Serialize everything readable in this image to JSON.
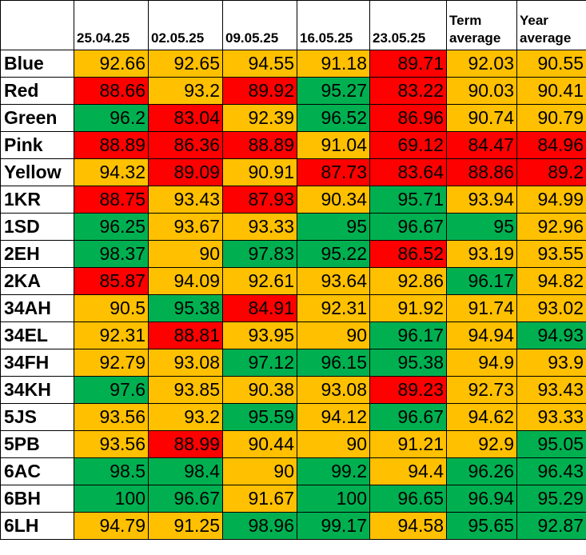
{
  "columns": [
    {
      "label": "25.04.25"
    },
    {
      "label": "02.05.25"
    },
    {
      "label": "09.05.25"
    },
    {
      "label": "16.05.25"
    },
    {
      "label": "23.05.25"
    },
    {
      "label": "Term average"
    },
    {
      "label": "Year average"
    }
  ],
  "legend_colors": {
    "green": "#00b050",
    "amber": "#ffc000",
    "red": "#ff0000"
  },
  "rows": [
    {
      "label": "Blue",
      "values": [
        "92.66",
        "92.65",
        "94.55",
        "91.18",
        "89.71",
        "92.03",
        "90.55"
      ],
      "colors": [
        "a",
        "a",
        "a",
        "a",
        "r",
        "a",
        "a"
      ]
    },
    {
      "label": "Red",
      "values": [
        "88.66",
        "93.2",
        "89.92",
        "95.27",
        "83.22",
        "90.03",
        "90.41"
      ],
      "colors": [
        "r",
        "a",
        "r",
        "g",
        "r",
        "a",
        "a"
      ]
    },
    {
      "label": "Green",
      "values": [
        "96.2",
        "83.04",
        "92.39",
        "96.52",
        "86.96",
        "90.74",
        "90.79"
      ],
      "colors": [
        "g",
        "r",
        "a",
        "g",
        "r",
        "a",
        "a"
      ]
    },
    {
      "label": "Pink",
      "values": [
        "88.89",
        "86.36",
        "88.89",
        "91.04",
        "69.12",
        "84.47",
        "84.96"
      ],
      "colors": [
        "r",
        "r",
        "r",
        "a",
        "r",
        "r",
        "r"
      ]
    },
    {
      "label": "Yellow",
      "values": [
        "94.32",
        "89.09",
        "90.91",
        "87.73",
        "83.64",
        "88.86",
        "89.2"
      ],
      "colors": [
        "a",
        "r",
        "a",
        "r",
        "r",
        "r",
        "r"
      ]
    },
    {
      "label": "1KR",
      "values": [
        "88.75",
        "93.43",
        "87.93",
        "90.34",
        "95.71",
        "93.94",
        "94.99"
      ],
      "colors": [
        "r",
        "a",
        "r",
        "a",
        "g",
        "a",
        "a"
      ]
    },
    {
      "label": "1SD",
      "values": [
        "96.25",
        "93.67",
        "93.33",
        "95",
        "96.67",
        "95",
        "92.96"
      ],
      "colors": [
        "g",
        "a",
        "a",
        "g",
        "g",
        "g",
        "a"
      ]
    },
    {
      "label": "2EH",
      "values": [
        "98.37",
        "90",
        "97.83",
        "95.22",
        "86.52",
        "93.19",
        "93.55"
      ],
      "colors": [
        "g",
        "a",
        "g",
        "g",
        "r",
        "a",
        "a"
      ]
    },
    {
      "label": "2KA",
      "values": [
        "85.87",
        "94.09",
        "92.61",
        "93.64",
        "92.86",
        "96.17",
        "94.82"
      ],
      "colors": [
        "r",
        "a",
        "a",
        "a",
        "a",
        "g",
        "a"
      ]
    },
    {
      "label": "34AH",
      "values": [
        "90.5",
        "95.38",
        "84.91",
        "92.31",
        "91.92",
        "91.74",
        "93.02"
      ],
      "colors": [
        "a",
        "g",
        "r",
        "a",
        "a",
        "a",
        "a"
      ]
    },
    {
      "label": "34EL",
      "values": [
        "92.31",
        "88.81",
        "93.95",
        "90",
        "96.17",
        "94.94",
        "94.93"
      ],
      "colors": [
        "a",
        "r",
        "a",
        "a",
        "g",
        "a",
        "g"
      ]
    },
    {
      "label": "34FH",
      "values": [
        "92.79",
        "93.08",
        "97.12",
        "96.15",
        "95.38",
        "94.9",
        "93.9"
      ],
      "colors": [
        "a",
        "a",
        "g",
        "g",
        "g",
        "a",
        "a"
      ]
    },
    {
      "label": "34KH",
      "values": [
        "97.6",
        "93.85",
        "90.38",
        "93.08",
        "89.23",
        "92.73",
        "93.43"
      ],
      "colors": [
        "g",
        "a",
        "a",
        "a",
        "r",
        "a",
        "a"
      ]
    },
    {
      "label": "5JS",
      "values": [
        "93.56",
        "93.2",
        "95.59",
        "94.12",
        "96.67",
        "94.62",
        "93.33"
      ],
      "colors": [
        "a",
        "a",
        "g",
        "a",
        "g",
        "a",
        "a"
      ]
    },
    {
      "label": "5PB",
      "values": [
        "93.56",
        "88.99",
        "90.44",
        "90",
        "91.21",
        "92.9",
        "95.05"
      ],
      "colors": [
        "a",
        "r",
        "a",
        "a",
        "a",
        "a",
        "g"
      ]
    },
    {
      "label": "6AC",
      "values": [
        "98.5",
        "98.4",
        "90",
        "99.2",
        "94.4",
        "96.26",
        "96.43"
      ],
      "colors": [
        "g",
        "g",
        "a",
        "g",
        "a",
        "g",
        "g"
      ]
    },
    {
      "label": "6BH",
      "values": [
        "100",
        "96.67",
        "91.67",
        "100",
        "96.65",
        "96.94",
        "95.29"
      ],
      "colors": [
        "g",
        "g",
        "a",
        "g",
        "g",
        "g",
        "g"
      ]
    },
    {
      "label": "6LH",
      "values": [
        "94.79",
        "91.25",
        "98.96",
        "99.17",
        "94.58",
        "95.65",
        "92.87"
      ],
      "colors": [
        "a",
        "a",
        "g",
        "g",
        "a",
        "g",
        "g"
      ]
    }
  ]
}
